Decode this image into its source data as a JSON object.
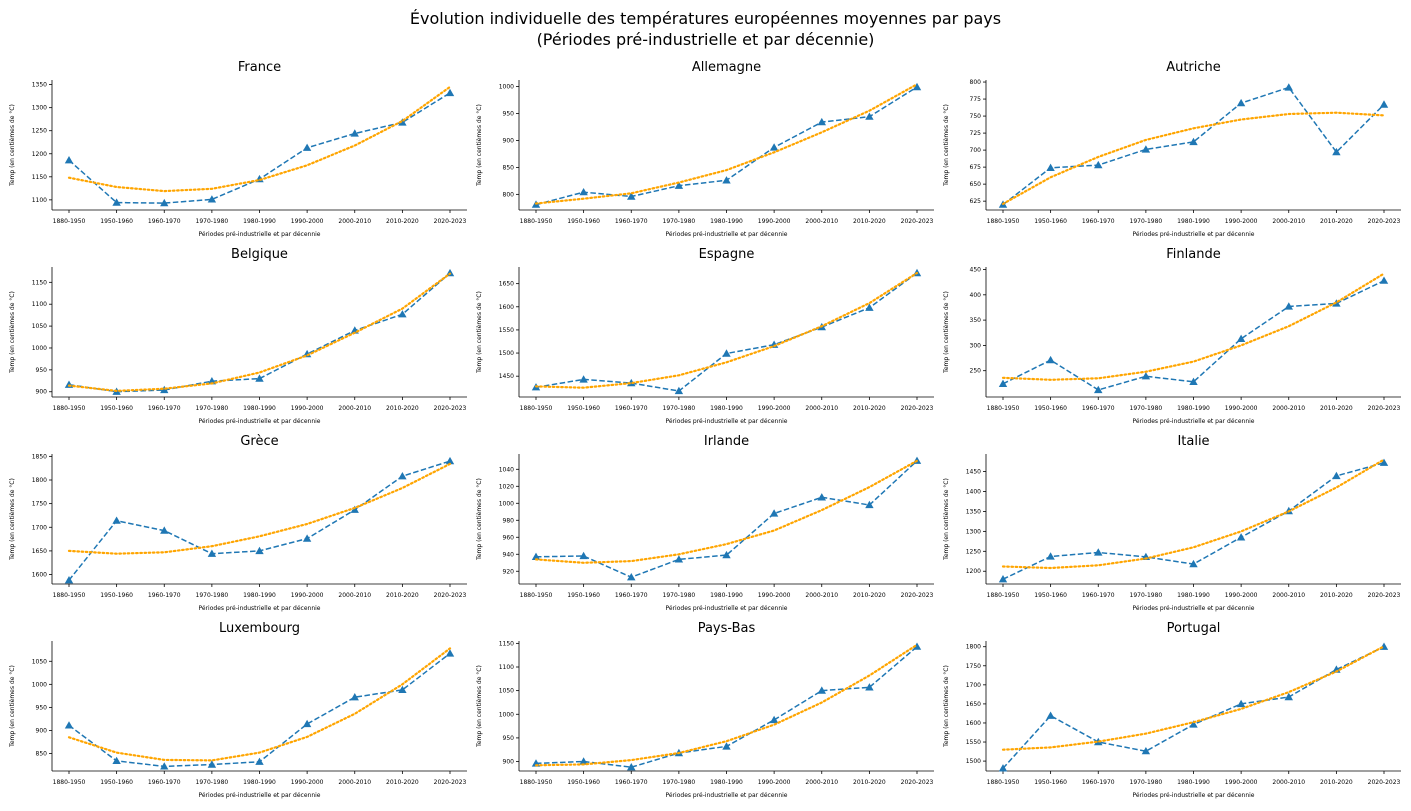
{
  "figure": {
    "title_line1": "Évolution individuelle des températures européennes moyennes par pays",
    "title_line2": "(Périodes pré-industrielle et par décennie)"
  },
  "colors": {
    "actual": "#1f77b4",
    "trend": "#ffa500"
  },
  "chart_data": [
    {
      "type": "line",
      "title": "France",
      "xlabel": "Périodes pré-industrielle et par décennie",
      "ylabel": "Temp (en centièmes de °C)",
      "categories": [
        "1880-1950",
        "1950-1960",
        "1960-1970",
        "1970-1980",
        "1980-1990",
        "1990-2000",
        "2000-2010",
        "2010-2020",
        "2020-2023"
      ],
      "yticks": [
        1100,
        1150,
        1200,
        1250,
        1300,
        1350
      ],
      "ylim": [
        1078,
        1360
      ],
      "series": [
        {
          "style": "dashed-triangle",
          "values": [
            1186,
            1094,
            1093,
            1101,
            1145,
            1213,
            1244,
            1268,
            1332
          ]
        },
        {
          "style": "dotted",
          "values": [
            1148,
            1128,
            1119,
            1124,
            1143,
            1175,
            1218,
            1271,
            1345
          ]
        }
      ]
    },
    {
      "type": "line",
      "title": "Allemagne",
      "xlabel": "Périodes pré-industrielle et par décennie",
      "ylabel": "Temp (en centièmes de °C)",
      "categories": [
        "1880-1950",
        "1950-1960",
        "1960-1970",
        "1970-1980",
        "1980-1990",
        "1990-2000",
        "2000-2010",
        "2010-2020",
        "2020-2023"
      ],
      "yticks": [
        800,
        850,
        900,
        950,
        1000
      ],
      "ylim": [
        771,
        1012
      ],
      "series": [
        {
          "style": "dashed-triangle",
          "values": [
            781,
            804,
            796,
            816,
            826,
            887,
            934,
            944,
            999
          ]
        },
        {
          "style": "dotted",
          "values": [
            783,
            792,
            802,
            822,
            845,
            878,
            915,
            955,
            1004
          ]
        }
      ]
    },
    {
      "type": "line",
      "title": "Autriche",
      "xlabel": "Périodes pré-industrielle et par décennie",
      "ylabel": "Temp (en centièmes de °C)",
      "categories": [
        "1880-1950",
        "1950-1960",
        "1960-1970",
        "1970-1980",
        "1980-1990",
        "1990-2000",
        "2000-2010",
        "2010-2020",
        "2020-2023"
      ],
      "yticks": [
        625,
        650,
        675,
        700,
        725,
        750,
        775,
        800
      ],
      "ylim": [
        612,
        803
      ],
      "series": [
        {
          "style": "dashed-triangle",
          "values": [
            620,
            674,
            678,
            701,
            712,
            769,
            792,
            697,
            767
          ]
        },
        {
          "style": "dotted",
          "values": [
            621,
            660,
            690,
            715,
            732,
            745,
            753,
            755,
            751
          ]
        }
      ]
    },
    {
      "type": "line",
      "title": "Belgique",
      "xlabel": "Périodes pré-industrielle et par décennie",
      "ylabel": "Temp (en centièmes de °C)",
      "categories": [
        "1880-1950",
        "1950-1960",
        "1960-1970",
        "1970-1980",
        "1980-1990",
        "1990-2000",
        "2000-2010",
        "2010-2020",
        "2020-2023"
      ],
      "yticks": [
        900,
        950,
        1000,
        1050,
        1100,
        1150
      ],
      "ylim": [
        888,
        1185
      ],
      "series": [
        {
          "style": "dashed-triangle",
          "values": [
            916,
            900,
            904,
            924,
            930,
            986,
            1040,
            1077,
            1171
          ]
        },
        {
          "style": "dotted",
          "values": [
            914,
            902,
            907,
            919,
            944,
            983,
            1035,
            1090,
            1170
          ]
        }
      ]
    },
    {
      "type": "line",
      "title": "Espagne",
      "xlabel": "Périodes pré-industrielle et par décennie",
      "ylabel": "Temp (en centièmes de °C)",
      "categories": [
        "1880-1950",
        "1950-1960",
        "1960-1970",
        "1970-1980",
        "1980-1990",
        "1990-2000",
        "2000-2010",
        "2010-2020",
        "2020-2023"
      ],
      "yticks": [
        1450,
        1500,
        1550,
        1600,
        1650
      ],
      "ylim": [
        1405,
        1686
      ],
      "series": [
        {
          "style": "dashed-triangle",
          "values": [
            1426,
            1443,
            1435,
            1418,
            1499,
            1518,
            1556,
            1598,
            1673
          ]
        },
        {
          "style": "dotted",
          "values": [
            1428,
            1425,
            1435,
            1452,
            1480,
            1515,
            1558,
            1608,
            1673
          ]
        }
      ]
    },
    {
      "type": "line",
      "title": "Finlande",
      "xlabel": "Périodes pré-industrielle et par décennie",
      "ylabel": "Temp (en centièmes de °C)",
      "categories": [
        "1880-1950",
        "1950-1960",
        "1960-1970",
        "1970-1980",
        "1980-1990",
        "1990-2000",
        "2000-2010",
        "2010-2020",
        "2020-2023"
      ],
      "yticks": [
        250,
        300,
        350,
        400,
        450
      ],
      "ylim": [
        198,
        455
      ],
      "series": [
        {
          "style": "dashed-triangle",
          "values": [
            224,
            271,
            212,
            239,
            228,
            313,
            377,
            383,
            428
          ]
        },
        {
          "style": "dotted",
          "values": [
            236,
            232,
            235,
            248,
            268,
            300,
            338,
            385,
            442
          ]
        }
      ]
    },
    {
      "type": "line",
      "title": "Grèce",
      "xlabel": "Périodes pré-industrielle et par décennie",
      "ylabel": "Temp (en centièmes de °C)",
      "categories": [
        "1880-1950",
        "1950-1960",
        "1960-1970",
        "1970-1980",
        "1980-1990",
        "1990-2000",
        "2000-2010",
        "2010-2020",
        "2020-2023"
      ],
      "yticks": [
        1600,
        1650,
        1700,
        1750,
        1800,
        1850
      ],
      "ylim": [
        1580,
        1855
      ],
      "series": [
        {
          "style": "dashed-triangle",
          "values": [
            1588,
            1714,
            1693,
            1644,
            1650,
            1676,
            1737,
            1808,
            1840
          ]
        },
        {
          "style": "dotted",
          "values": [
            1650,
            1644,
            1647,
            1660,
            1681,
            1707,
            1741,
            1783,
            1834
          ]
        }
      ]
    },
    {
      "type": "line",
      "title": "Irlande",
      "xlabel": "Périodes pré-industrielle et par décennie",
      "ylabel": "Temp (en centièmes de °C)",
      "categories": [
        "1880-1950",
        "1950-1960",
        "1960-1970",
        "1970-1980",
        "1980-1990",
        "1990-2000",
        "2000-2010",
        "2010-2020",
        "2020-2023"
      ],
      "yticks": [
        920,
        940,
        960,
        980,
        1000,
        1020,
        1040
      ],
      "ylim": [
        905,
        1058
      ],
      "series": [
        {
          "style": "dashed-triangle",
          "values": [
            937,
            938,
            913,
            934,
            939,
            988,
            1007,
            998,
            1050
          ]
        },
        {
          "style": "dotted",
          "values": [
            934,
            930,
            932,
            940,
            952,
            968,
            992,
            1019,
            1050
          ]
        }
      ]
    },
    {
      "type": "line",
      "title": "Italie",
      "xlabel": "Périodes pré-industrielle et par décennie",
      "ylabel": "Temp (en centièmes de °C)",
      "categories": [
        "1880-1950",
        "1950-1960",
        "1960-1970",
        "1970-1980",
        "1980-1990",
        "1990-2000",
        "2000-2010",
        "2010-2020",
        "2020-2023"
      ],
      "yticks": [
        1200,
        1250,
        1300,
        1350,
        1400,
        1450
      ],
      "ylim": [
        1168,
        1494
      ],
      "series": [
        {
          "style": "dashed-triangle",
          "values": [
            1180,
            1237,
            1247,
            1236,
            1218,
            1285,
            1351,
            1439,
            1472
          ]
        },
        {
          "style": "dotted",
          "values": [
            1212,
            1208,
            1215,
            1232,
            1260,
            1300,
            1350,
            1410,
            1480
          ]
        }
      ]
    },
    {
      "type": "line",
      "title": "Luxembourg",
      "xlabel": "Périodes pré-industrielle et par décennie",
      "ylabel": "Temp (en centièmes de °C)",
      "categories": [
        "1880-1950",
        "1950-1960",
        "1960-1970",
        "1970-1980",
        "1980-1990",
        "1990-2000",
        "2000-2010",
        "2010-2020",
        "2020-2023"
      ],
      "yticks": [
        850,
        900,
        950,
        1000,
        1050
      ],
      "ylim": [
        812,
        1094
      ],
      "series": [
        {
          "style": "dashed-triangle",
          "values": [
            911,
            834,
            822,
            826,
            832,
            914,
            972,
            988,
            1067
          ]
        },
        {
          "style": "dotted",
          "values": [
            885,
            852,
            836,
            835,
            852,
            886,
            936,
            1000,
            1078
          ]
        }
      ]
    },
    {
      "type": "line",
      "title": "Pays-Bas",
      "xlabel": "Périodes pré-industrielle et par décennie",
      "ylabel": "Temp (en centièmes de °C)",
      "categories": [
        "1880-1950",
        "1950-1960",
        "1960-1970",
        "1970-1980",
        "1980-1990",
        "1990-2000",
        "2000-2010",
        "2010-2020",
        "2020-2023"
      ],
      "yticks": [
        900,
        950,
        1000,
        1050,
        1100,
        1150
      ],
      "ylim": [
        880,
        1155
      ],
      "series": [
        {
          "style": "dashed-triangle",
          "values": [
            896,
            900,
            888,
            918,
            932,
            988,
            1050,
            1057,
            1143
          ]
        },
        {
          "style": "dotted",
          "values": [
            892,
            894,
            903,
            918,
            943,
            978,
            1025,
            1082,
            1147
          ]
        }
      ]
    },
    {
      "type": "line",
      "title": "Portugal",
      "xlabel": "Périodes pré-industrielle et par décennie",
      "ylabel": "Temp (en centièmes de °C)",
      "categories": [
        "1880-1950",
        "1950-1960",
        "1960-1970",
        "1970-1980",
        "1980-1990",
        "1990-2000",
        "2000-2010",
        "2010-2020",
        "2020-2023"
      ],
      "yticks": [
        1500,
        1550,
        1600,
        1650,
        1700,
        1750,
        1800
      ],
      "ylim": [
        1474,
        1815
      ],
      "series": [
        {
          "style": "dashed-triangle",
          "values": [
            1481,
            1619,
            1550,
            1526,
            1596,
            1650,
            1668,
            1740,
            1800
          ]
        },
        {
          "style": "dotted",
          "values": [
            1530,
            1536,
            1551,
            1572,
            1602,
            1637,
            1681,
            1735,
            1801
          ]
        }
      ]
    }
  ]
}
